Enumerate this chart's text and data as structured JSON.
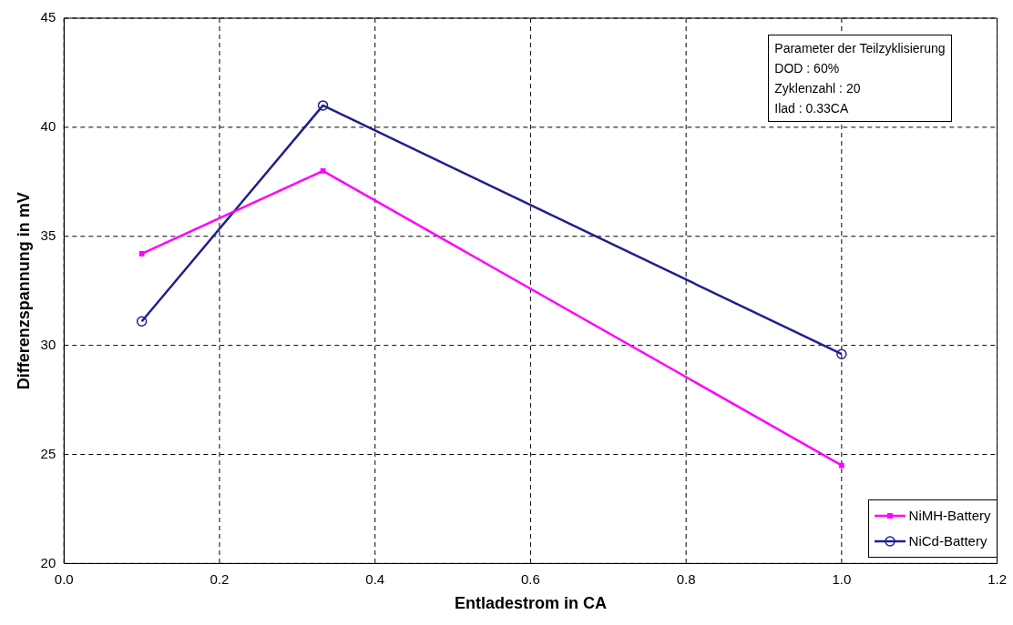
{
  "chart_data": {
    "type": "line",
    "xlabel": "Entladestrom in CA",
    "ylabel": "Differenzspannung in mV",
    "x": [
      0.1,
      0.333,
      1.0
    ],
    "series": [
      {
        "name": "NiMH-Battery",
        "color": "#ff00ff",
        "marker": "square",
        "values": [
          34.2,
          38.0,
          24.5
        ]
      },
      {
        "name": "NiCd-Battery",
        "color": "#1f1f8f",
        "marker": "circle",
        "values": [
          31.1,
          41.0,
          29.6
        ]
      }
    ],
    "xlim": [
      0,
      1.2
    ],
    "xticks": [
      {
        "value": 0,
        "label": "0.0"
      },
      {
        "value": 0.2,
        "label": "0.2"
      },
      {
        "value": 0.4,
        "label": "0.4"
      },
      {
        "value": 0.6,
        "label": "0.6"
      },
      {
        "value": 0.8,
        "label": "0.8"
      },
      {
        "value": 1.0,
        "label": "1.0"
      },
      {
        "value": 1.2,
        "label": "1.2"
      }
    ],
    "ylim": [
      20,
      45
    ],
    "yticks": [
      20,
      25,
      30,
      35,
      40,
      45
    ],
    "grid": true,
    "legend": "bottom right",
    "line_style": "solid",
    "annotations": [
      "Parameter der Teilzyklisierung",
      "DOD : 60%",
      "Zyklenzahl : 20",
      "Ilad : 0.33CA"
    ]
  }
}
